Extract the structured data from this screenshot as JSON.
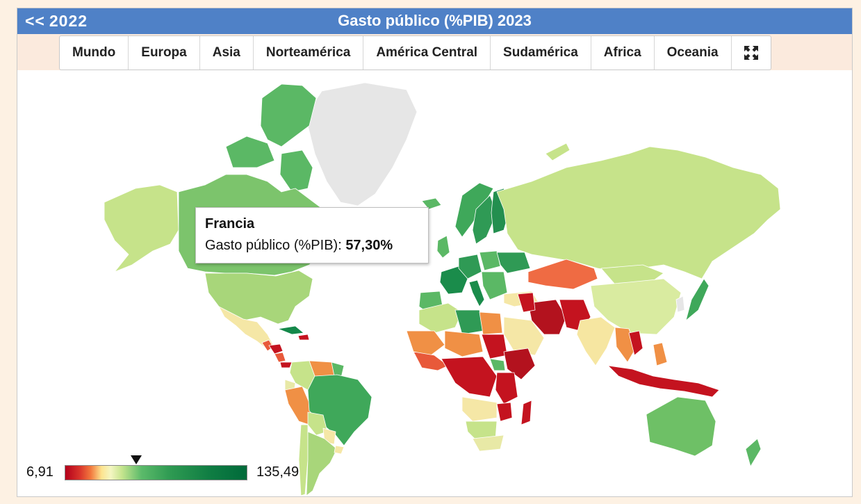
{
  "header": {
    "back_arrows": "<<",
    "back_year": "2022",
    "title": "Gasto público (%PIB) 2023"
  },
  "regions": [
    "Mundo",
    "Europa",
    "Asia",
    "Norteamérica",
    "América Central",
    "Sudamérica",
    "Africa",
    "Oceania"
  ],
  "fullscreen_icon": "expand-arrows-icon",
  "tooltip": {
    "country": "Francia",
    "label": "Gasto público (%PIB):",
    "value": "57,30%"
  },
  "legend": {
    "min": "6,91",
    "max": "135,49",
    "marker_value": 57.3,
    "colors": [
      "#b3001b",
      "#f2783d",
      "#fde48f",
      "#c7e58f",
      "#5bba6a",
      "#006a3a"
    ]
  },
  "colors": {
    "header_bg": "#4f81c7",
    "no_data": "#e6e6e6",
    "low": "#c4131f",
    "mid": "#f09045",
    "high_light": "#c6e38a",
    "high": "#5bb865",
    "very_high": "#14884a"
  }
}
